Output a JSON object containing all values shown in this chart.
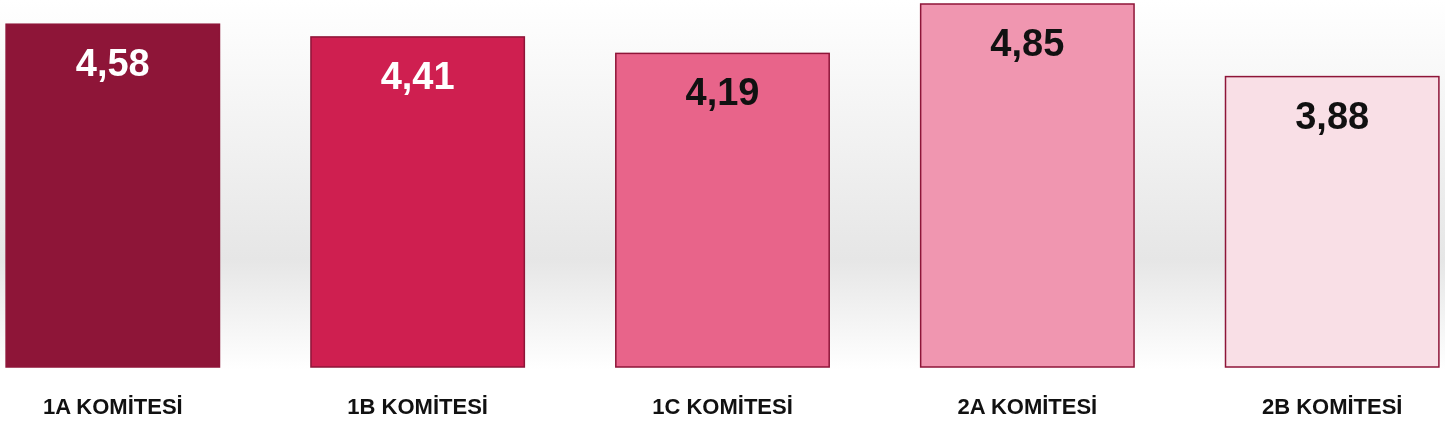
{
  "chart_data": {
    "type": "bar",
    "categories": [
      "1A KOMİTESİ",
      "1B KOMİTESİ",
      "1C KOMİTESİ",
      "2A KOMİTESİ",
      "2B KOMİTESİ"
    ],
    "values": [
      4.58,
      4.41,
      4.19,
      4.85,
      3.88
    ],
    "colors": [
      "#8e1538",
      "#cf1f50",
      "#e8648a",
      "#f096b0",
      "#f9dfe6"
    ],
    "value_labels": [
      "4,58",
      "4,41",
      "4,19",
      "4,85",
      "3,88"
    ]
  }
}
